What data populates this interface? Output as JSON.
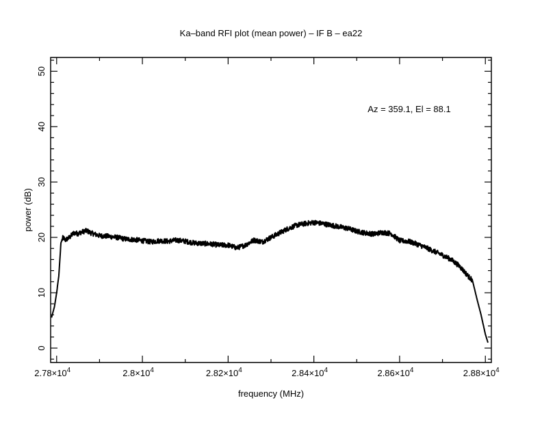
{
  "chart_data": {
    "type": "line",
    "title": "Ka–band RFI plot (mean power) – IF B – ea22",
    "annotation": "Az = 359.1, El = 88.1",
    "xlabel": "frequency (MHz)",
    "ylabel": "power (dB)",
    "xlim": [
      27786,
      28814
    ],
    "ylim": [
      -2.6,
      52.5
    ],
    "grid": false,
    "x_ticks": [
      {
        "value": 27800,
        "label": "2.78×10",
        "exp": "4"
      },
      {
        "value": 28000,
        "label": "2.8×10",
        "exp": "4"
      },
      {
        "value": 28200,
        "label": "2.82×10",
        "exp": "4"
      },
      {
        "value": 28400,
        "label": "2.84×10",
        "exp": "4"
      },
      {
        "value": 28600,
        "label": "2.86×10",
        "exp": "4"
      },
      {
        "value": 28800,
        "label": "2.88×10",
        "exp": "4"
      }
    ],
    "y_ticks": [
      {
        "value": 0,
        "label": "0"
      },
      {
        "value": 10,
        "label": "10"
      },
      {
        "value": 20,
        "label": "20"
      },
      {
        "value": 30,
        "label": "30"
      },
      {
        "value": 40,
        "label": "40"
      },
      {
        "value": 50,
        "label": "50"
      }
    ],
    "series": [
      {
        "name": "mean power",
        "color": "#000000",
        "x": [
          27788,
          27795,
          27800,
          27805,
          27810,
          27815,
          27820,
          27830,
          27840,
          27850,
          27860,
          27870,
          27880,
          27900,
          27920,
          27940,
          27960,
          27980,
          28000,
          28020,
          28040,
          28060,
          28080,
          28100,
          28120,
          28140,
          28160,
          28180,
          28200,
          28220,
          28240,
          28260,
          28280,
          28300,
          28320,
          28340,
          28360,
          28380,
          28400,
          28420,
          28440,
          28460,
          28480,
          28500,
          28520,
          28540,
          28560,
          28580,
          28600,
          28620,
          28640,
          28660,
          28680,
          28700,
          28720,
          28740,
          28760,
          28770,
          28780,
          28790,
          28800,
          28806
        ],
        "y": [
          5.5,
          7.5,
          10,
          13,
          19,
          20,
          19.5,
          20,
          20.8,
          20.7,
          21,
          21.2,
          20.8,
          20.3,
          20.2,
          20,
          19.7,
          19.6,
          19.4,
          19.2,
          19.4,
          19.3,
          19.5,
          19.3,
          19,
          18.9,
          18.8,
          18.6,
          18.6,
          18.1,
          18.6,
          19.5,
          19.2,
          20,
          20.8,
          21.6,
          22.2,
          22.5,
          22.7,
          22.5,
          22.2,
          21.9,
          21.6,
          21.1,
          20.8,
          20.6,
          20.9,
          20.7,
          19.4,
          19.3,
          18.8,
          18.2,
          17.5,
          16.8,
          16.0,
          14.8,
          13,
          12.2,
          9,
          6,
          2.5,
          1
        ]
      }
    ]
  }
}
